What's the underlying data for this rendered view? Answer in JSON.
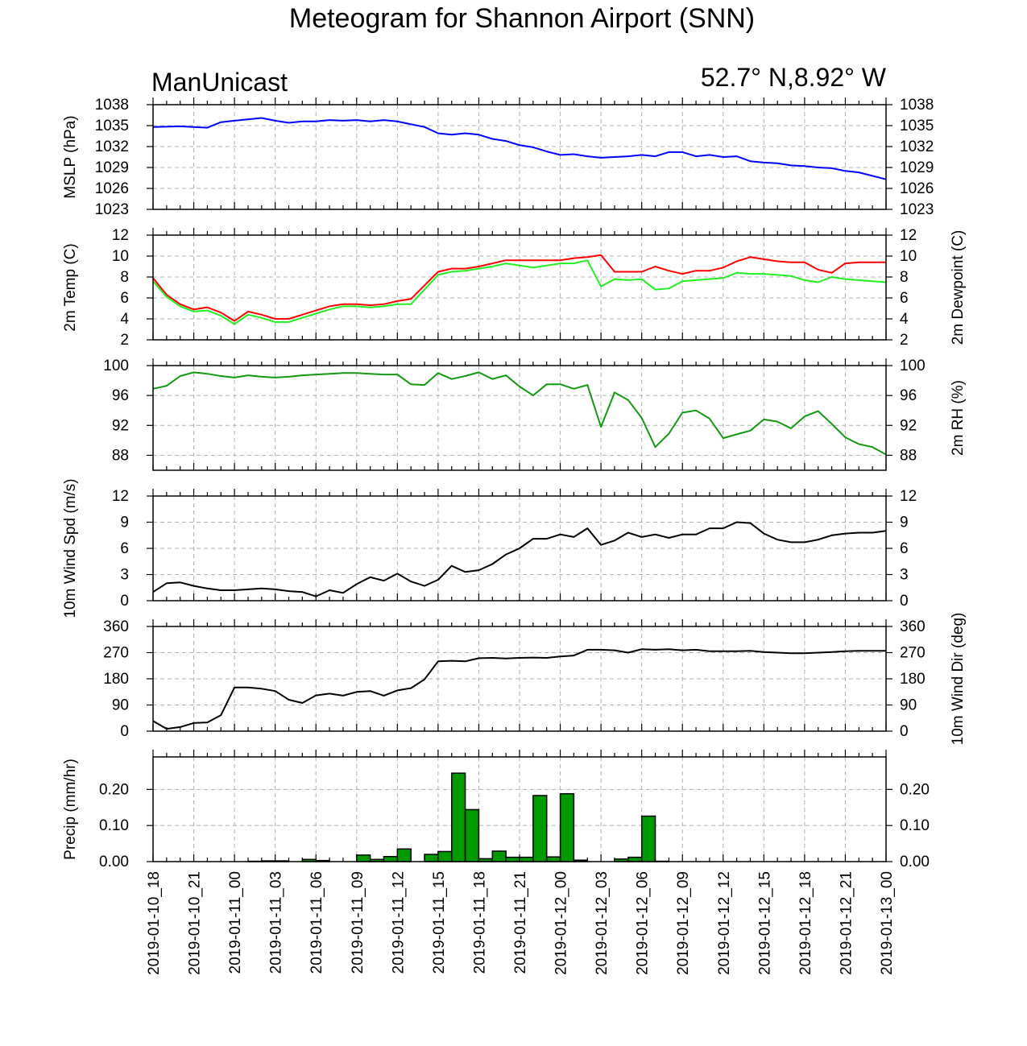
{
  "title": "Meteogram for Shannon Airport (SNN)",
  "model_label": "ManUnicast",
  "location_label": "52.7° N,8.92° W",
  "colors": {
    "pressure": "#0000ff",
    "temperature": "#ff0000",
    "dewpoint": "#22ee22",
    "rh": "#119911",
    "wind": "#000000",
    "precip": "#009900",
    "grid": "#b0b0b0"
  },
  "chart_data": [
    {
      "type": "line",
      "id": "mslp",
      "ylabel_left": "MSLP (hPa)",
      "ylabel_right": "",
      "ylim": [
        1023,
        1038
      ],
      "yticks": [
        "1023",
        "1026",
        "1029",
        "1032",
        "1035",
        "1038"
      ],
      "xlim": [
        0,
        54
      ],
      "series": [
        {
          "color_key": "pressure",
          "x": [
            0,
            2,
            4,
            5,
            6,
            8,
            9,
            10,
            11,
            12,
            13,
            14,
            15,
            16,
            17,
            18,
            19,
            20,
            21,
            22,
            23,
            24,
            25,
            26,
            27,
            28,
            29,
            30,
            31,
            32,
            33,
            34,
            35,
            36,
            37,
            38,
            39,
            40,
            41,
            42,
            43,
            44,
            45,
            46,
            47,
            48,
            49,
            50,
            51,
            52,
            53,
            54
          ],
          "values": [
            1034.8,
            1034.9,
            1034.7,
            1035.5,
            1035.7,
            1036.1,
            1035.7,
            1035.4,
            1035.6,
            1035.6,
            1035.8,
            1035.7,
            1035.8,
            1035.6,
            1035.8,
            1035.6,
            1035.2,
            1034.8,
            1033.9,
            1033.7,
            1033.9,
            1033.7,
            1033.1,
            1032.8,
            1032.2,
            1031.9,
            1031.3,
            1030.8,
            1030.9,
            1030.6,
            1030.4,
            1030.5,
            1030.6,
            1030.8,
            1030.6,
            1031.2,
            1031.2,
            1030.6,
            1030.8,
            1030.5,
            1030.6,
            1029.9,
            1029.7,
            1029.6,
            1029.3,
            1029.2,
            1029.0,
            1028.9,
            1028.5,
            1028.3,
            1027.8,
            1027.3
          ]
        }
      ]
    },
    {
      "type": "line",
      "id": "temp",
      "ylabel_left": "2m Temp (C)",
      "ylabel_right": "2m Dewpoint (C)",
      "ylim": [
        2,
        12
      ],
      "yticks": [
        "2",
        "4",
        "6",
        "8",
        "10",
        "12"
      ],
      "xlim": [
        0,
        54
      ],
      "series": [
        {
          "color_key": "temperature",
          "x": [
            0,
            1,
            2,
            3,
            4,
            5,
            6,
            7,
            8,
            9,
            10,
            11,
            12,
            13,
            14,
            15,
            16,
            17,
            18,
            19,
            20,
            21,
            22,
            23,
            24,
            25,
            26,
            27,
            28,
            29,
            30,
            31,
            32,
            33,
            34,
            35,
            36,
            37,
            38,
            39,
            40,
            41,
            42,
            43,
            44,
            45,
            46,
            47,
            48,
            49,
            50,
            51,
            52,
            53,
            54
          ],
          "values": [
            7.9,
            6.3,
            5.4,
            4.9,
            5.1,
            4.6,
            3.8,
            4.7,
            4.4,
            4.0,
            4.0,
            4.4,
            4.8,
            5.2,
            5.4,
            5.4,
            5.3,
            5.4,
            5.7,
            5.9,
            7.2,
            8.5,
            8.8,
            8.8,
            9.0,
            9.3,
            9.6,
            9.6,
            9.6,
            9.6,
            9.6,
            9.8,
            9.9,
            10.1,
            8.5,
            8.5,
            8.5,
            9.0,
            8.6,
            8.3,
            8.6,
            8.6,
            8.9,
            9.5,
            9.9,
            9.7,
            9.5,
            9.4,
            9.4,
            8.7,
            8.4,
            9.3,
            9.4,
            9.4,
            9.4
          ]
        },
        {
          "color_key": "dewpoint",
          "x": [
            0,
            1,
            2,
            3,
            4,
            5,
            6,
            7,
            8,
            9,
            10,
            11,
            12,
            13,
            14,
            15,
            16,
            17,
            18,
            19,
            20,
            21,
            22,
            23,
            24,
            25,
            26,
            27,
            28,
            29,
            30,
            31,
            32,
            33,
            34,
            35,
            36,
            37,
            38,
            39,
            40,
            41,
            42,
            43,
            44,
            45,
            46,
            47,
            48,
            49,
            50,
            51,
            52,
            53,
            54
          ],
          "values": [
            7.6,
            6.1,
            5.2,
            4.7,
            4.8,
            4.3,
            3.5,
            4.4,
            4.1,
            3.7,
            3.7,
            4.1,
            4.5,
            4.9,
            5.2,
            5.2,
            5.1,
            5.2,
            5.4,
            5.4,
            6.8,
            8.2,
            8.5,
            8.6,
            8.8,
            9.0,
            9.3,
            9.1,
            8.9,
            9.1,
            9.3,
            9.3,
            9.6,
            7.1,
            7.8,
            7.7,
            7.8,
            6.8,
            6.9,
            7.6,
            7.7,
            7.8,
            7.9,
            8.4,
            8.3,
            8.3,
            8.2,
            8.1,
            7.7,
            7.5,
            8.0,
            7.8,
            7.7,
            7.6,
            7.5
          ]
        }
      ]
    },
    {
      "type": "line",
      "id": "rh",
      "ylabel_left": "",
      "ylabel_right": "2m RH (%)",
      "ylim": [
        86,
        100
      ],
      "yticks": [
        "88",
        "92",
        "96",
        "100"
      ],
      "ytick_values": [
        88,
        92,
        96,
        100
      ],
      "xlim": [
        0,
        54
      ],
      "series": [
        {
          "color_key": "rh",
          "x": [
            0,
            1,
            2,
            3,
            4,
            5,
            6,
            7,
            8,
            9,
            10,
            11,
            12,
            13,
            14,
            15,
            16,
            17,
            18,
            19,
            20,
            21,
            22,
            23,
            24,
            25,
            26,
            27,
            28,
            29,
            30,
            31,
            32,
            33,
            34,
            35,
            36,
            37,
            38,
            39,
            40,
            41,
            42,
            43,
            44,
            45,
            46,
            47,
            48,
            49,
            50,
            51,
            52,
            53,
            54
          ],
          "values": [
            96.9,
            97.3,
            98.6,
            99.1,
            98.9,
            98.6,
            98.4,
            98.7,
            98.5,
            98.4,
            98.5,
            98.7,
            98.8,
            98.9,
            99.0,
            99.0,
            98.9,
            98.8,
            98.8,
            97.5,
            97.4,
            99.0,
            98.2,
            98.6,
            99.1,
            98.2,
            98.7,
            97.2,
            96.0,
            97.5,
            97.5,
            96.9,
            97.4,
            91.8,
            96.4,
            95.4,
            93.0,
            89.1,
            90.9,
            93.7,
            94.0,
            92.9,
            90.3,
            90.8,
            91.3,
            92.8,
            92.5,
            91.6,
            93.2,
            93.9,
            92.2,
            90.4,
            89.5,
            89.1,
            88.1
          ]
        }
      ]
    },
    {
      "type": "line",
      "id": "wspd",
      "ylabel_left": "10m Wind Spd (m/s)",
      "ylabel_right": "",
      "ylim": [
        0,
        12
      ],
      "yticks": [
        "0",
        "3",
        "6",
        "9",
        "12"
      ],
      "xlim": [
        0,
        54
      ],
      "series": [
        {
          "color_key": "wind",
          "x": [
            0,
            1,
            2,
            3,
            4,
            5,
            6,
            7,
            8,
            9,
            10,
            11,
            12,
            13,
            14,
            15,
            16,
            17,
            18,
            19,
            20,
            21,
            22,
            23,
            24,
            25,
            26,
            27,
            28,
            29,
            30,
            31,
            32,
            33,
            34,
            35,
            36,
            37,
            38,
            39,
            40,
            41,
            42,
            43,
            44,
            45,
            46,
            47,
            48,
            49,
            50,
            51,
            52,
            53,
            54
          ],
          "values": [
            1.0,
            2.0,
            2.1,
            1.7,
            1.4,
            1.2,
            1.2,
            1.3,
            1.4,
            1.3,
            1.1,
            1.0,
            0.5,
            1.2,
            0.9,
            1.9,
            2.7,
            2.3,
            3.1,
            2.2,
            1.7,
            2.4,
            4.0,
            3.3,
            3.5,
            4.2,
            5.3,
            6.0,
            7.1,
            7.1,
            7.6,
            7.3,
            8.3,
            6.4,
            6.9,
            7.8,
            7.3,
            7.6,
            7.2,
            7.6,
            7.6,
            8.3,
            8.3,
            9.0,
            8.9,
            7.7,
            7.0,
            6.7,
            6.7,
            7.0,
            7.5,
            7.7,
            7.8,
            7.8,
            8.0
          ]
        }
      ]
    },
    {
      "type": "line",
      "id": "wdir",
      "ylabel_left": "",
      "ylabel_right": "10m Wind Dir (deg)",
      "ylim": [
        0,
        360
      ],
      "yticks": [
        "0",
        "90",
        "180",
        "270",
        "360"
      ],
      "xlim": [
        0,
        54
      ],
      "series": [
        {
          "color_key": "wind",
          "x": [
            0,
            1,
            2,
            3,
            4,
            5,
            6,
            7,
            8,
            9,
            10,
            11,
            12,
            13,
            14,
            15,
            16,
            17,
            18,
            19,
            20,
            21,
            22,
            23,
            24,
            25,
            26,
            27,
            28,
            29,
            30,
            31,
            32,
            33,
            34,
            35,
            36,
            37,
            38,
            39,
            40,
            41,
            42,
            43,
            44,
            45,
            46,
            47,
            48,
            49,
            50,
            51,
            52,
            53,
            54
          ],
          "values": [
            35,
            8,
            14,
            28,
            30,
            55,
            150,
            150,
            146,
            138,
            108,
            97,
            123,
            129,
            122,
            135,
            138,
            122,
            140,
            148,
            178,
            240,
            242,
            240,
            251,
            252,
            250,
            252,
            253,
            252,
            257,
            260,
            280,
            280,
            278,
            270,
            282,
            280,
            282,
            278,
            280,
            275,
            275,
            275,
            276,
            272,
            270,
            268,
            268,
            270,
            272,
            275,
            276,
            276,
            276
          ]
        }
      ]
    },
    {
      "type": "bar",
      "id": "precip",
      "ylabel_left": "Precip (mm/hr)",
      "ylabel_right": "",
      "ylim": [
        0,
        0.29
      ],
      "yticks": [
        "0.00",
        "0.10",
        "0.20"
      ],
      "ytick_values": [
        0,
        0.1,
        0.2
      ],
      "xlim": [
        0,
        54
      ],
      "x": [
        0,
        1,
        2,
        3,
        4,
        5,
        6,
        7,
        8,
        9,
        10,
        11,
        12,
        13,
        14,
        15,
        16,
        17,
        18,
        19,
        20,
        21,
        22,
        23,
        24,
        25,
        26,
        27,
        28,
        29,
        30,
        31,
        32,
        33,
        34,
        35,
        36,
        37,
        38,
        39,
        40,
        41,
        42,
        43,
        44,
        45,
        46,
        47,
        48,
        49,
        50,
        51,
        52,
        53
      ],
      "values": [
        0,
        0,
        0,
        0,
        0,
        0,
        0,
        0.001,
        0.002,
        0.002,
        0,
        0.006,
        0.003,
        0,
        0,
        0.018,
        0.006,
        0.014,
        0.035,
        0,
        0.02,
        0.028,
        0.245,
        0.144,
        0.008,
        0.029,
        0.012,
        0.012,
        0.183,
        0.013,
        0.188,
        0.004,
        0,
        0,
        0.007,
        0.012,
        0.126,
        0.001,
        0,
        0,
        0,
        0,
        0,
        0,
        0,
        0,
        0,
        0,
        0,
        0,
        0,
        0,
        0,
        0
      ]
    }
  ],
  "x_axis": {
    "tick_positions": [
      0,
      3,
      6,
      9,
      12,
      15,
      18,
      21,
      24,
      27,
      30,
      33,
      36,
      39,
      42,
      45,
      48,
      51,
      54
    ],
    "tick_labels": [
      "2019-01-10_18",
      "2019-01-10_21",
      "2019-01-11_00",
      "2019-01-11_03",
      "2019-01-11_06",
      "2019-01-11_09",
      "2019-01-11_12",
      "2019-01-11_15",
      "2019-01-11_18",
      "2019-01-11_21",
      "2019-01-12_00",
      "2019-01-12_03",
      "2019-01-12_06",
      "2019-01-12_09",
      "2019-01-12_12",
      "2019-01-12_15",
      "2019-01-12_18",
      "2019-01-12_21",
      "2019-01-13_00"
    ]
  }
}
